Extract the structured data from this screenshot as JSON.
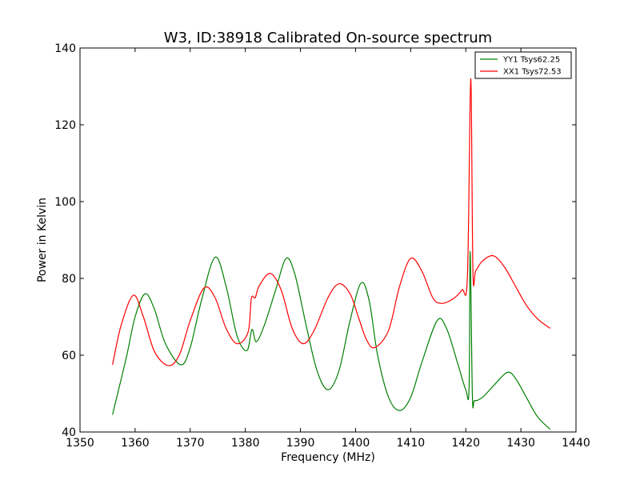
{
  "chart_data": {
    "type": "line",
    "title": "W3, ID:38918 Calibrated On-source spectrum",
    "xlabel": "Frequency (MHz)",
    "ylabel": "Power in Kelvin",
    "xlim": [
      1350,
      1440
    ],
    "ylim": [
      40,
      140
    ],
    "xticks": [
      "1350",
      "1360",
      "1370",
      "1380",
      "1390",
      "1400",
      "1410",
      "1420",
      "1430",
      "1440"
    ],
    "yticks": [
      "40",
      "60",
      "80",
      "100",
      "120",
      "140"
    ],
    "grid": false,
    "legend_position": "top-right",
    "series": [
      {
        "name": "YY1 Tsys62.25",
        "color": "#008000",
        "x": [
          1355.9,
          1357,
          1358.5,
          1360,
          1361.8,
          1363.5,
          1365.5,
          1368.3,
          1370,
          1372,
          1374.5,
          1376.5,
          1378.5,
          1380.3,
          1381.2,
          1382,
          1383.5,
          1385.5,
          1387.4,
          1389,
          1391,
          1393,
          1395,
          1397,
          1399,
          1401,
          1402.5,
          1404,
          1406,
          1408,
          1410,
          1412,
          1414.8,
          1416.5,
          1418.5,
          1420,
          1420.6,
          1420.8,
          1421.2,
          1421.6,
          1423,
          1425,
          1427.5,
          1429,
          1431,
          1433,
          1435.3
        ],
        "y": [
          44.5,
          51,
          60,
          70,
          76,
          72,
          63,
          57.5,
          62,
          74,
          85.5,
          78,
          65,
          61.2,
          66.7,
          63.5,
          68,
          77,
          85.2,
          81,
          68,
          56,
          51,
          56,
          69,
          78.8,
          74,
          60,
          49,
          45.6,
          49,
          58,
          69,
          67,
          58,
          51,
          51.5,
          87,
          49.5,
          48.2,
          49,
          52,
          55.5,
          54,
          49,
          44,
          40.7
        ]
      },
      {
        "name": "XX1 Tsys72.53",
        "color": "#ff0000",
        "x": [
          1355.9,
          1357.5,
          1359.7,
          1361.5,
          1363.5,
          1366,
          1368,
          1370,
          1372.5,
          1374.5,
          1376.5,
          1378.5,
          1380.5,
          1381.1,
          1381.8,
          1382.5,
          1384.5,
          1386.5,
          1388.5,
          1390.5,
          1392.5,
          1395,
          1397,
          1399,
          1400.5,
          1402,
          1403.5,
          1406,
          1408,
          1410,
          1412,
          1414,
          1415.5,
          1417.5,
          1419.3,
          1420.3,
          1420.9,
          1421.3,
          1421.8,
          1423,
          1425,
          1427,
          1429,
          1431,
          1433,
          1435.3
        ],
        "y": [
          57.5,
          68,
          75.6,
          70,
          61,
          57.3,
          60,
          69,
          77.5,
          75,
          67,
          63,
          66,
          74.8,
          75,
          78,
          81.3,
          77,
          67,
          63,
          66.5,
          75,
          78.6,
          76,
          70,
          64,
          62,
          66.5,
          78,
          85.2,
          82,
          75,
          73.5,
          74.5,
          77,
          80.5,
          132,
          81.8,
          82,
          84.5,
          85.9,
          83,
          78,
          73,
          69.5,
          67
        ]
      }
    ]
  }
}
